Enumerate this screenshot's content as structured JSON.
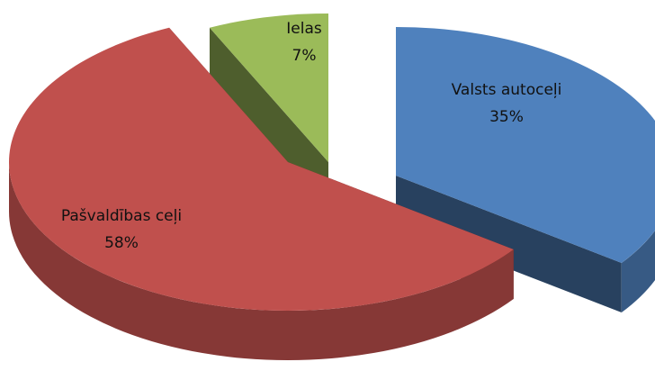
{
  "chart_data": {
    "type": "pie",
    "categories": [
      "Valsts autoceļi",
      "Pašvaldības ceļi",
      "Ielas"
    ],
    "values": [
      35,
      58,
      7
    ],
    "value_labels": [
      "35%",
      "58%",
      "7%"
    ],
    "colors": [
      "#4f81bd",
      "#c0504d",
      "#9bbb59"
    ]
  }
}
